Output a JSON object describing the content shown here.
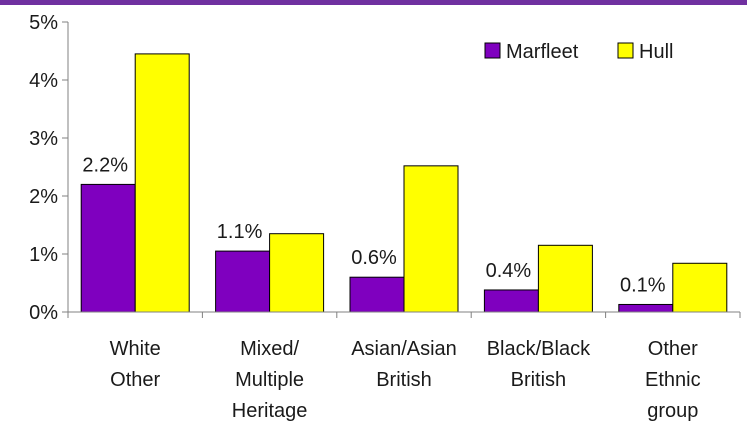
{
  "chart_data": {
    "type": "bar",
    "categories": [
      [
        "White",
        "Other"
      ],
      [
        "Mixed/",
        "Multiple",
        "Heritage"
      ],
      [
        "Asian/Asian",
        "British"
      ],
      [
        "Black/Black",
        "British"
      ],
      [
        "Other",
        "Ethnic",
        "group"
      ]
    ],
    "series": [
      {
        "name": "Marfleet",
        "color": "#7f00bf",
        "values": [
          2.2,
          1.05,
          0.6,
          0.38,
          0.13
        ],
        "data_labels": [
          "2.2%",
          "1.1%",
          "0.6%",
          "0.4%",
          "0.1%"
        ]
      },
      {
        "name": "Hull",
        "color": "#ffff00",
        "values": [
          4.45,
          1.35,
          2.52,
          1.15,
          0.84
        ]
      }
    ],
    "y_ticks": [
      "0%",
      "1%",
      "2%",
      "3%",
      "4%",
      "5%"
    ],
    "ylim": [
      0,
      5
    ],
    "grid": false,
    "legend_position": "top-right",
    "accent_bar_color": "#7030a0"
  }
}
